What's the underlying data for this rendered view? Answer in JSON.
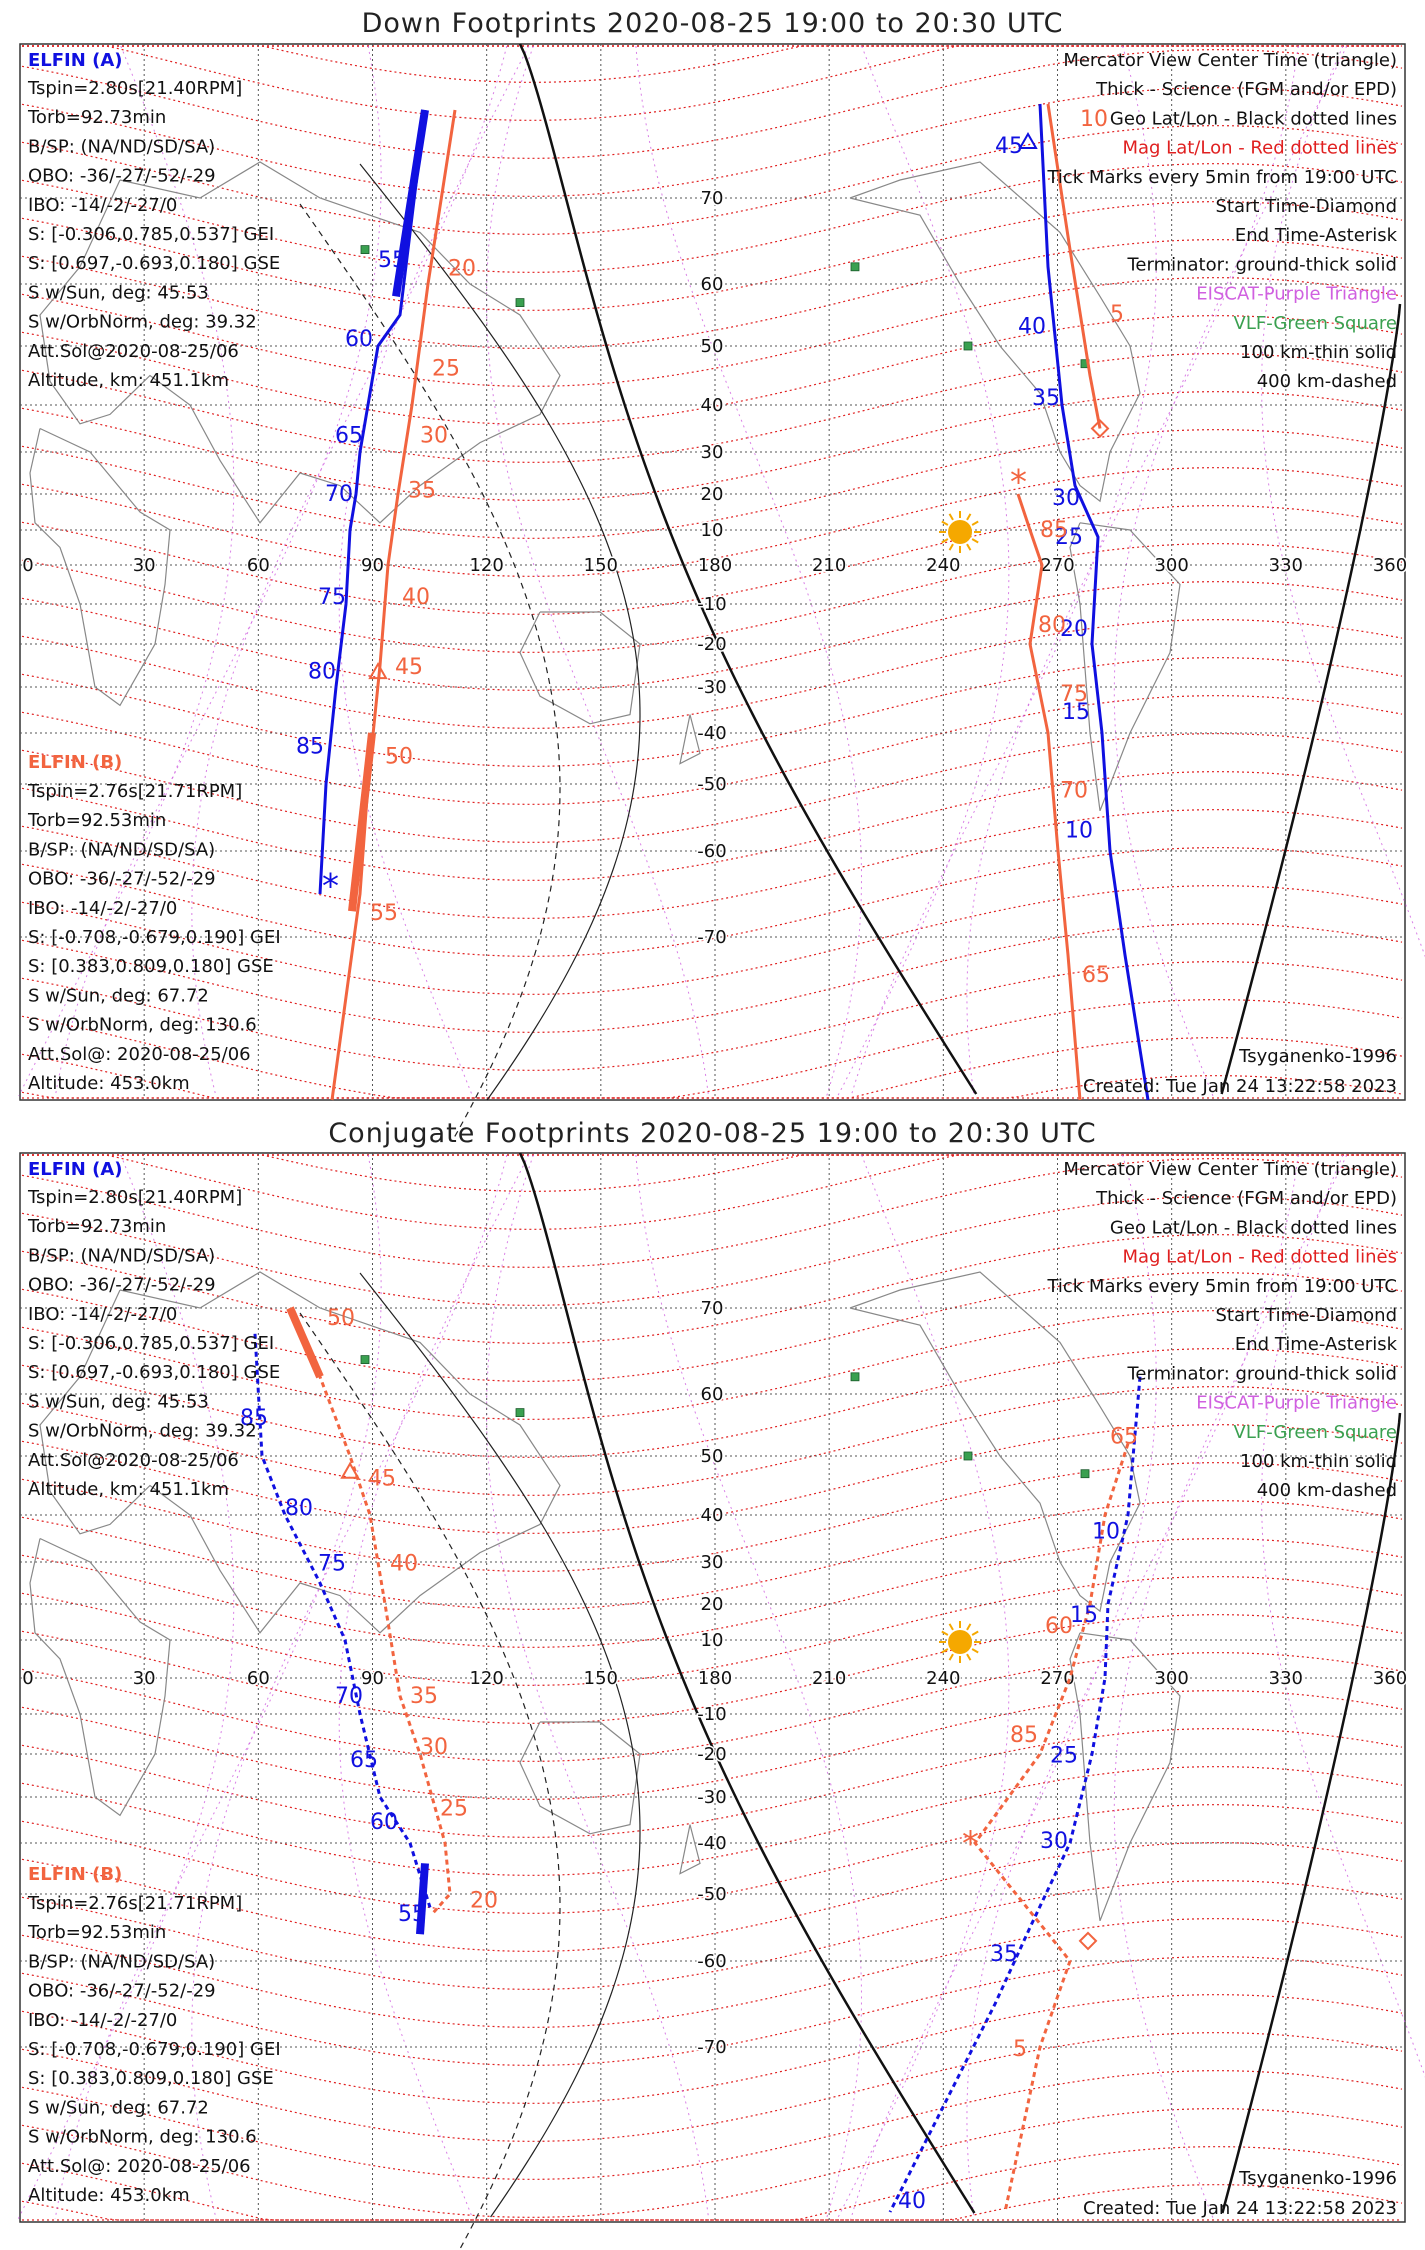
{
  "colors": {
    "elfin_a": "#1010e0",
    "elfin_b": "#f2643f",
    "geo_grid": "#555555",
    "mag_grid": "#e02020",
    "eiscat": "#d060e0",
    "vlf": "#3aa050",
    "sun": "#f5a800",
    "terminator": "#111111"
  },
  "panels": [
    {
      "title": "Down Footprints 2020-08-25 19:00 to 20:30 UTC",
      "lon_labels": [
        "0",
        "30",
        "60",
        "90",
        "120",
        "150",
        "180",
        "210",
        "240",
        "270",
        "300",
        "330",
        "360"
      ],
      "lat_labels": [
        "70",
        "60",
        "50",
        "40",
        "30",
        "20",
        "10",
        "-10",
        "-20",
        "-30",
        "-40",
        "-50",
        "-60",
        "-70"
      ],
      "elfin_a": {
        "name": "ELFIN (A)",
        "lines": [
          "Tspin=2.80s[21.40RPM]",
          "Torb=92.73min",
          "B/SP: (NA/ND/SD/SA)",
          "OBO: -36/-27/-52/-29",
          "IBO: -14/-2/-27/0",
          "S: [-0.306,0.785,0.537] GEI",
          "S: [0.697,-0.693,0.180] GSE",
          "S w/Sun, deg: 45.53",
          "S w/OrbNorm, deg: 39.32",
          "Att.Sol@2020-08-25/06",
          "Altitude, km: 451.1km"
        ]
      },
      "elfin_b": {
        "name": "ELFIN (B)",
        "lines": [
          "Tspin=2.76s[21.71RPM]",
          "Torb=92.53min",
          "B/SP: (NA/ND/SD/SA)",
          "OBO: -36/-27/-52/-29",
          "IBO: -14/-2/-27/0",
          "S: [-0.708,-0.679,0.190] GEI",
          "S: [0.383,0.809,0.180] GSE",
          "S w/Sun, deg: 67.72",
          "S w/OrbNorm, deg: 130.6",
          "Att.Sol@: 2020-08-25/06",
          "Altitude: 453.0km"
        ]
      },
      "legend": [
        "Mercator View Center Time (triangle)",
        "Thick - Science (FGM and/or EPD)",
        "Geo Lat/Lon - Black dotted lines",
        "Mag Lat/Lon - Red dotted lines",
        "Tick Marks every 5min from 19:00 UTC",
        "Start Time-Diamond",
        "End Time-Asterisk",
        "Terminator: ground-thick solid",
        "EISCAT-Purple Triangle",
        "VLF-Green Square",
        "100 km-thin solid",
        "400 km-dashed"
      ],
      "model": "Tsyganenko-1996",
      "created": "Created: Tue Jan 24 13:22:58 2023",
      "track_labels_a": [
        "55",
        "60",
        "65",
        "70",
        "75",
        "80",
        "85",
        "45",
        "40",
        "35",
        "30",
        "25",
        "20",
        "15",
        "10"
      ],
      "track_labels_b": [
        "20",
        "25",
        "30",
        "35",
        "40",
        "45",
        "50",
        "55",
        "10",
        "5",
        "85",
        "80",
        "75",
        "70",
        "65"
      ]
    },
    {
      "title": "Conjugate Footprints 2020-08-25 19:00 to 20:30 UTC",
      "lon_labels": [
        "0",
        "30",
        "60",
        "90",
        "120",
        "150",
        "180",
        "210",
        "240",
        "270",
        "300",
        "330",
        "360"
      ],
      "lat_labels": [
        "70",
        "60",
        "50",
        "40",
        "30",
        "20",
        "10",
        "-10",
        "-20",
        "-30",
        "-40",
        "-50",
        "-60",
        "-70"
      ],
      "elfin_a": {
        "name": "ELFIN (A)",
        "lines": [
          "Tspin=2.80s[21.40RPM]",
          "Torb=92.73min",
          "B/SP: (NA/ND/SD/SA)",
          "OBO: -36/-27/-52/-29",
          "IBO: -14/-2/-27/0",
          "S: [-0.306,0.785,0.537] GEI",
          "S: [0.697,-0.693,0.180] GSE",
          "S w/Sun, deg: 45.53",
          "S w/OrbNorm, deg: 39.32",
          "Att.Sol@2020-08-25/06",
          "Altitude, km: 451.1km"
        ]
      },
      "elfin_b": {
        "name": "ELFIN (B)",
        "lines": [
          "Tspin=2.76s[21.71RPM]",
          "Torb=92.53min",
          "B/SP: (NA/ND/SD/SA)",
          "OBO: -36/-27/-52/-29",
          "IBO: -14/-2/-27/0",
          "S: [-0.708,-0.679,0.190] GEI",
          "S: [0.383,0.809,0.180] GSE",
          "S w/Sun, deg: 67.72",
          "S w/OrbNorm, deg: 130.6",
          "Att.Sol@: 2020-08-25/06",
          "Altitude: 453.0km"
        ]
      },
      "legend": [
        "Mercator View Center Time (triangle)",
        "Thick - Science (FGM and/or EPD)",
        "Geo Lat/Lon - Black dotted lines",
        "Mag Lat/Lon - Red dotted lines",
        "Tick Marks every 5min from 19:00 UTC",
        "Start Time-Diamond",
        "End Time-Asterisk",
        "Terminator: ground-thick solid",
        "EISCAT-Purple Triangle",
        "VLF-Green Square",
        "100 km-thin solid",
        "400 km-dashed"
      ],
      "model": "Tsyganenko-1996",
      "created": "Created: Tue Jan 24 13:22:58 2023",
      "track_labels_a": [
        "85",
        "80",
        "75",
        "70",
        "65",
        "60",
        "55",
        "10",
        "15",
        "25",
        "30",
        "35",
        "40"
      ],
      "track_labels_b": [
        "50",
        "45",
        "40",
        "35",
        "30",
        "25",
        "20",
        "65",
        "60",
        "85",
        "5"
      ]
    }
  ]
}
